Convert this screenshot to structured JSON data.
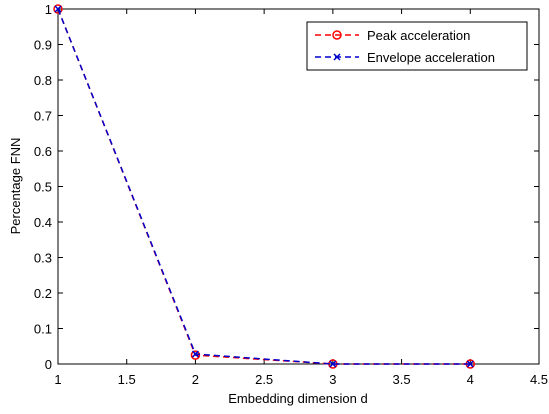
{
  "chart_data": {
    "type": "line",
    "xlabel": "Embedding dimension d",
    "ylabel": "Percentage FNN",
    "x": [
      1,
      2,
      3,
      4
    ],
    "series": [
      {
        "name": "Peak acceleration",
        "color": "#ff0000",
        "marker": "circle",
        "values": [
          1,
          0.025,
          0,
          0
        ]
      },
      {
        "name": "Envelope acceleration",
        "color": "#0000cc",
        "marker": "x",
        "values": [
          1,
          0.028,
          0,
          0
        ]
      }
    ],
    "xlim": [
      1,
      4.5
    ],
    "xticks": [
      1,
      1.5,
      2,
      2.5,
      3,
      3.5,
      4,
      4.5
    ],
    "ylim": [
      0,
      1
    ],
    "yticks": [
      0,
      0.1,
      0.2,
      0.3,
      0.4,
      0.5,
      0.6,
      0.7,
      0.8,
      0.9,
      1
    ],
    "grid": false,
    "legend": "top-right"
  }
}
